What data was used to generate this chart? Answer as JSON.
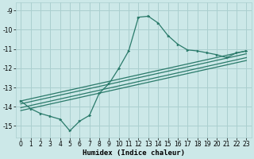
{
  "xlabel": "Humidex (Indice chaleur)",
  "bg_color": "#cce8e8",
  "grid_color": "#aacfcf",
  "line_color": "#2a7a6a",
  "xlim_min": -0.5,
  "xlim_max": 23.5,
  "ylim_min": -15.6,
  "ylim_max": -8.6,
  "yticks": [
    -15,
    -14,
    -13,
    -12,
    -11,
    -10,
    -9
  ],
  "xticks": [
    0,
    1,
    2,
    3,
    4,
    5,
    6,
    7,
    8,
    9,
    10,
    11,
    12,
    13,
    14,
    15,
    16,
    17,
    18,
    19,
    20,
    21,
    22,
    23
  ],
  "curve_x": [
    0,
    1,
    2,
    3,
    4,
    5,
    6,
    7,
    8,
    9,
    10,
    11,
    12,
    13,
    14,
    15,
    16,
    17,
    18,
    19,
    20,
    21,
    22,
    23
  ],
  "curve_y": [
    -13.7,
    -14.1,
    -14.35,
    -14.5,
    -14.65,
    -15.25,
    -14.75,
    -14.45,
    -13.3,
    -12.8,
    -12.0,
    -11.1,
    -9.35,
    -9.3,
    -9.65,
    -10.3,
    -10.75,
    -11.05,
    -11.1,
    -11.2,
    -11.3,
    -11.45,
    -11.2,
    -11.1
  ],
  "line1_x": [
    0,
    23
  ],
  "line1_y": [
    -13.7,
    -11.1
  ],
  "line2_x": [
    0,
    23
  ],
  "line2_y": [
    -13.85,
    -11.25
  ],
  "line3_x": [
    0,
    23
  ],
  "line3_y": [
    -14.05,
    -11.45
  ],
  "line4_x": [
    0,
    23
  ],
  "line4_y": [
    -14.2,
    -11.6
  ],
  "xlabel_fontsize": 6.5,
  "tick_fontsize": 5.5
}
